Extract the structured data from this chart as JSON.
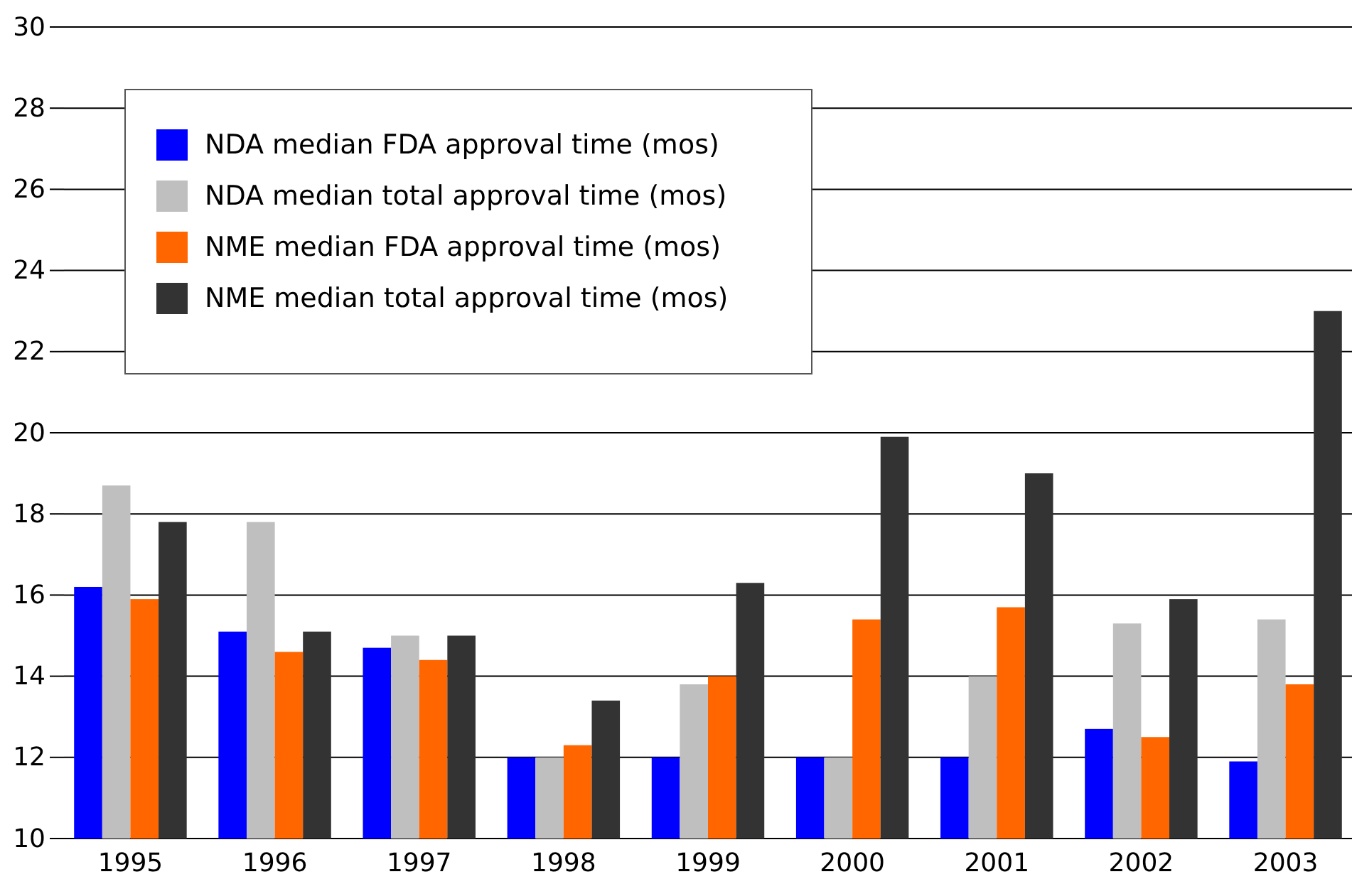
{
  "chart_data": {
    "type": "bar",
    "categories": [
      "1995",
      "1996",
      "1997",
      "1998",
      "1999",
      "2000",
      "2001",
      "2002",
      "2003"
    ],
    "series": [
      {
        "name": "NDA median FDA approval time (mos)",
        "color": "#0000ff",
        "values": [
          16.2,
          15.1,
          14.7,
          12.0,
          12.0,
          12.0,
          12.0,
          12.7,
          11.9
        ]
      },
      {
        "name": "NDA median total approval time (mos)",
        "color": "#bfbfbf",
        "values": [
          18.7,
          17.8,
          15.0,
          12.0,
          13.8,
          12.0,
          14.0,
          15.3,
          15.4
        ]
      },
      {
        "name": "NME median FDA approval time (mos)",
        "color": "#ff6600",
        "values": [
          15.9,
          14.6,
          14.4,
          12.3,
          14.0,
          15.4,
          15.7,
          12.5,
          13.8
        ]
      },
      {
        "name": "NME median total approval time (mos)",
        "color": "#333333",
        "values": [
          17.8,
          15.1,
          15.0,
          13.4,
          16.3,
          19.9,
          19.0,
          15.9,
          23.0
        ]
      }
    ],
    "ylim": [
      10,
      30
    ],
    "yticks": [
      10,
      12,
      14,
      16,
      18,
      20,
      22,
      24,
      26,
      28,
      30
    ],
    "grid": "y",
    "legend": "top left"
  }
}
